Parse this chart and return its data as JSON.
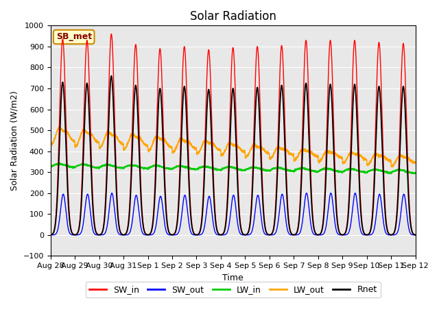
{
  "title": "Solar Radiation",
  "xlabel": "Time",
  "ylabel": "Solar Radiation (W/m2)",
  "ylim": [
    -100,
    1000
  ],
  "background_color": "#ffffff",
  "plot_background": "#e8e8e8",
  "grid_color": "#ffffff",
  "series_colors": {
    "SW_in": "#ff0000",
    "SW_out": "#0000ff",
    "LW_in": "#00cc00",
    "LW_out": "#ffa500",
    "Rnet": "#000000"
  },
  "legend_label": "SB_met",
  "legend_box_color": "#ffffcc",
  "legend_box_edge": "#cc8800",
  "n_days": 15,
  "points_per_day": 288,
  "tick_labels": [
    "Aug 28",
    "Aug 29",
    "Aug 30",
    "Aug 31",
    "Sep 1",
    "Sep 2",
    "Sep 3",
    "Sep 4",
    "Sep 5",
    "Sep 6",
    "Sep 7",
    "Sep 8",
    "Sep 9",
    "Sep 10",
    "Sep 11",
    "Sep 12"
  ],
  "linewidth": 1.0
}
